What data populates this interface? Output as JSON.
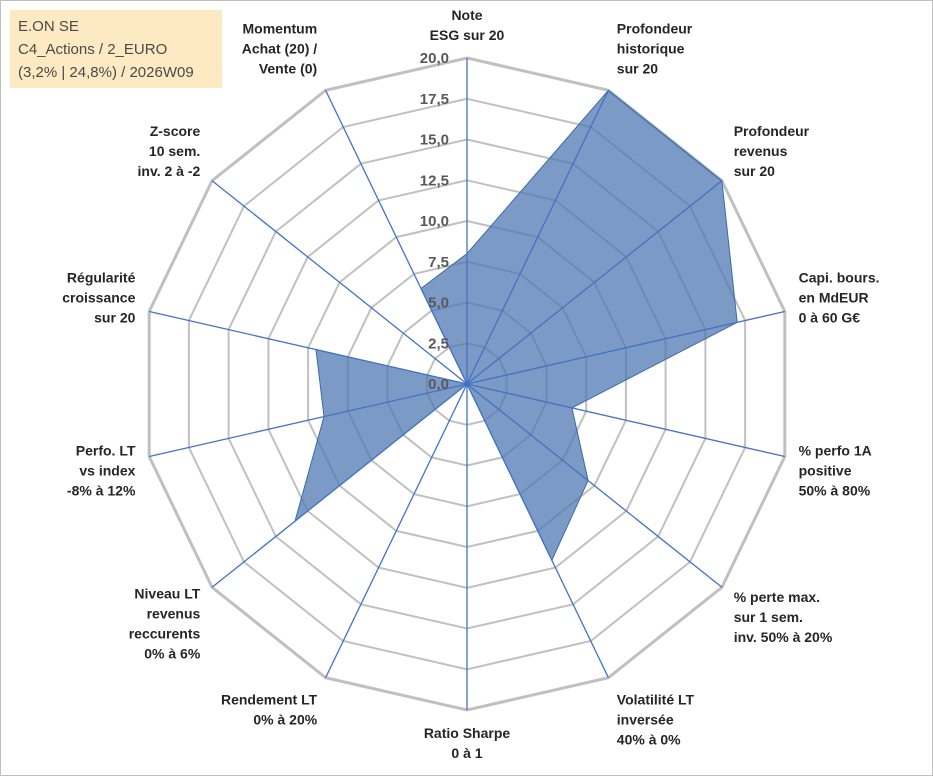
{
  "info_box": {
    "line1": "E.ON SE",
    "line2": "C4_Actions / 2_EURO",
    "line3": "(3,2% | 24,8%) / 2026W09"
  },
  "chart_data": {
    "type": "radar",
    "title": "",
    "range": [
      0,
      20
    ],
    "tick_values": [
      0,
      2.5,
      5,
      7.5,
      10,
      12.5,
      15,
      17.5,
      20
    ],
    "tick_labels": [
      "0,0",
      "2,5",
      "5,0",
      "7,5",
      "10,0",
      "12,5",
      "15,0",
      "17,5",
      "20,0"
    ],
    "categories": [
      [
        "Note",
        "ESG sur 20"
      ],
      [
        "Profondeur",
        "historique",
        "sur 20"
      ],
      [
        "Profondeur",
        "revenus",
        "sur 20"
      ],
      [
        "Capi. bours.",
        "en MdEUR",
        "0 à 60 G€"
      ],
      [
        "% perfo 1A",
        "positive",
        "50% à 80%"
      ],
      [
        "% perte max.",
        "sur 1 sem.",
        "inv. 50% à 20%"
      ],
      [
        "Volatilité LT",
        "inversée",
        "40% à 0%"
      ],
      [
        "Ratio Sharpe",
        "0 à 1"
      ],
      [
        "Rendement LT",
        "0% à 20%"
      ],
      [
        "Niveau LT",
        "revenus",
        "reccurents",
        "0% à 6%"
      ],
      [
        "Perfo. LT",
        "vs index",
        "-8% à 12%"
      ],
      [
        "Régularité",
        "croissance",
        "sur 20"
      ],
      [
        "Z-score",
        "10 sem.",
        "inv. 2 à -2"
      ],
      [
        "Momentum",
        "Achat (20) /",
        "Vente (0)"
      ]
    ],
    "series": [
      {
        "name": "E.ON SE",
        "color": "#4f7ab3",
        "values": [
          8.0,
          20.0,
          20.0,
          17.0,
          6.6,
          9.5,
          12.0,
          0.0,
          0.0,
          13.5,
          9.0,
          9.5,
          0.0,
          6.5
        ]
      }
    ],
    "grid_color": "#c0c0c0",
    "axis_color": "#4472c4"
  }
}
